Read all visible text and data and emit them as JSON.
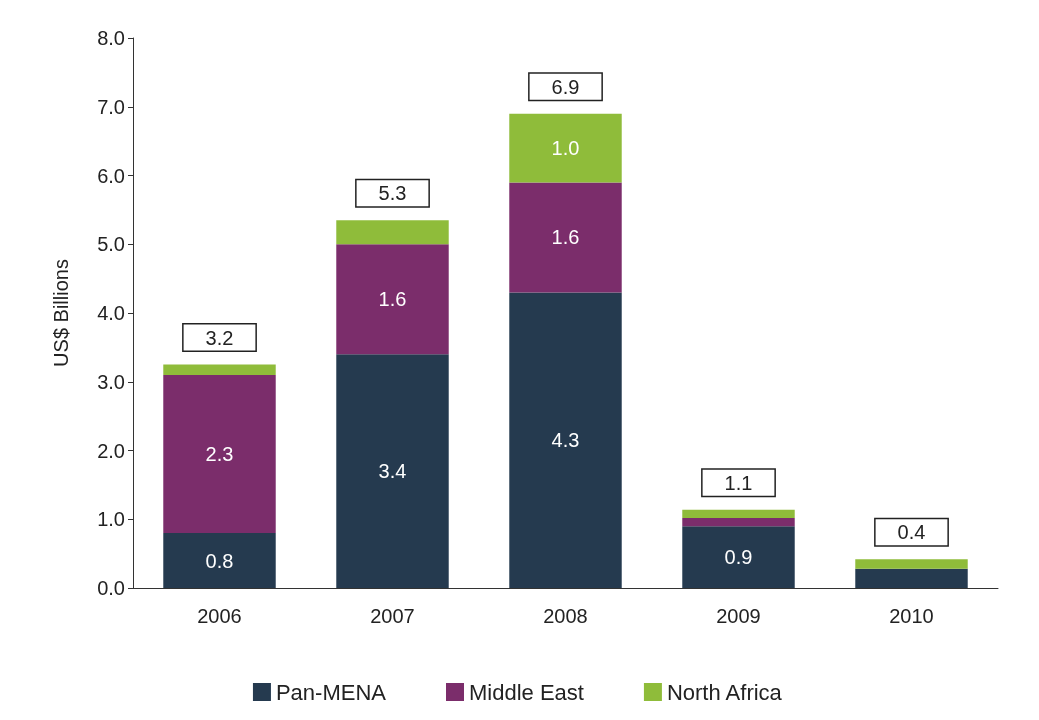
{
  "chart_data": {
    "type": "bar",
    "stacked": true,
    "ylabel": "US$ Billions",
    "categories": [
      "2006",
      "2007",
      "2008",
      "2009",
      "2010"
    ],
    "series": [
      {
        "name": "Pan-MENA",
        "color": "#253a4f",
        "values": [
          0.8,
          3.4,
          4.3,
          0.9,
          0.28
        ],
        "value_labels": [
          "0.8",
          "3.4",
          "4.3",
          "0.9",
          null
        ]
      },
      {
        "name": "Middle East",
        "color": "#7b2d6b",
        "values": [
          2.3,
          1.6,
          1.6,
          0.12,
          null
        ],
        "value_labels": [
          "2.3",
          "1.6",
          "1.6",
          null,
          null
        ]
      },
      {
        "name": "North Africa",
        "color": "#8fbc3a",
        "values": [
          0.15,
          0.35,
          1.0,
          0.12,
          0.14
        ],
        "value_labels": [
          null,
          null,
          "1.0",
          null,
          null
        ]
      }
    ],
    "totals": [
      "3.2",
      "5.3",
      "6.9",
      "1.1",
      "0.4"
    ],
    "ylim": [
      0,
      8
    ],
    "yticks": [
      {
        "value": 0,
        "label": "0.0"
      },
      {
        "value": 1,
        "label": "1.0"
      },
      {
        "value": 2,
        "label": "2.0"
      },
      {
        "value": 3,
        "label": "3.0"
      },
      {
        "value": 4,
        "label": "4.0"
      },
      {
        "value": 5,
        "label": "5.0"
      },
      {
        "value": 6,
        "label": "6.0"
      },
      {
        "value": 7,
        "label": "7.0"
      },
      {
        "value": 8,
        "label": "8.0"
      }
    ],
    "grid": false,
    "legend": "bottom"
  }
}
